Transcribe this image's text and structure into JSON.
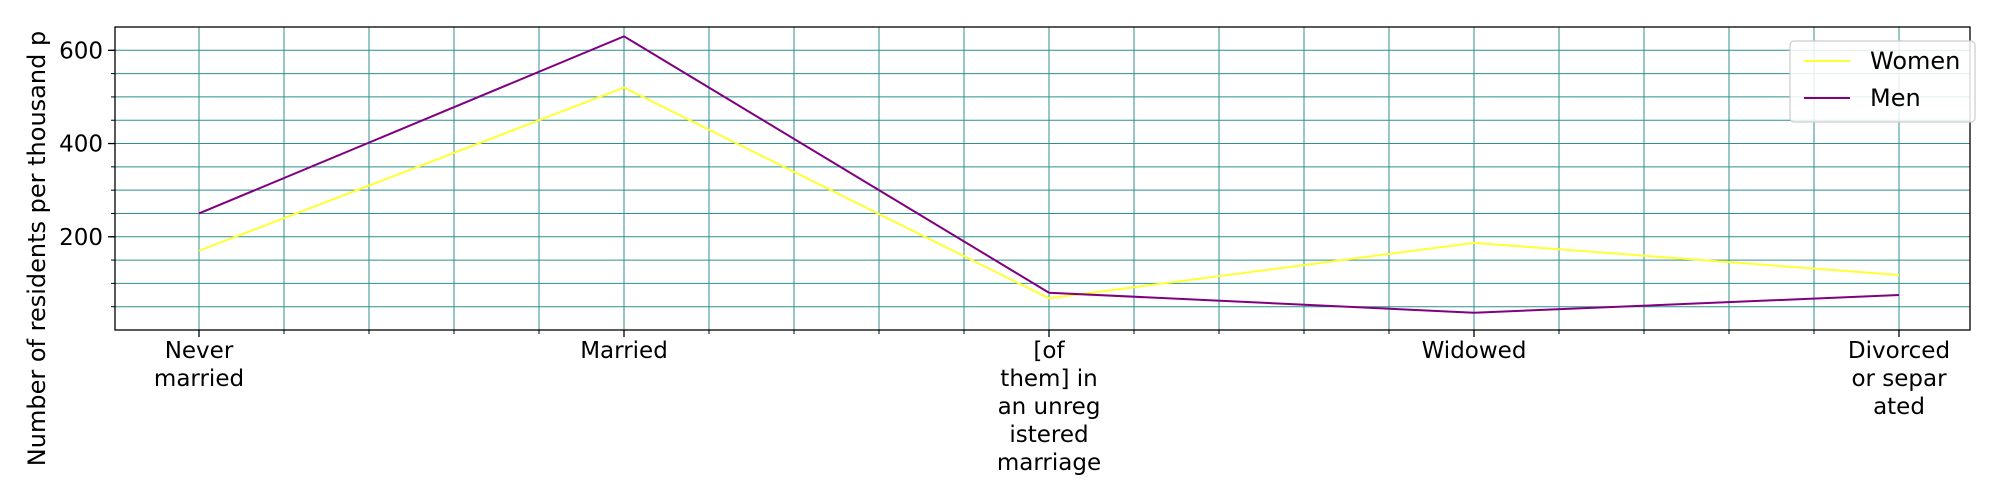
{
  "chart_data": {
    "type": "line",
    "title": "",
    "xlabel": "",
    "ylabel": "Number of residents per thousand p",
    "categories": [
      [
        "Never",
        "married"
      ],
      [
        "Married"
      ],
      [
        "[of",
        "them] in",
        "an unreg",
        "istered",
        "marriage"
      ],
      [
        "Widowed"
      ],
      [
        "Divorced",
        "or separ",
        "ated"
      ]
    ],
    "yticks": [
      200,
      400,
      600
    ],
    "ylim": [
      0,
      650
    ],
    "grid": true,
    "legend": "top-right",
    "series": [
      {
        "name": "Women",
        "values": [
          170,
          520,
          68,
          187,
          118
        ],
        "color": "#ffff33"
      },
      {
        "name": "Men",
        "values": [
          250,
          630,
          80,
          37,
          75
        ],
        "color": "#800080"
      }
    ],
    "grid_color": "#2f8f8f"
  }
}
